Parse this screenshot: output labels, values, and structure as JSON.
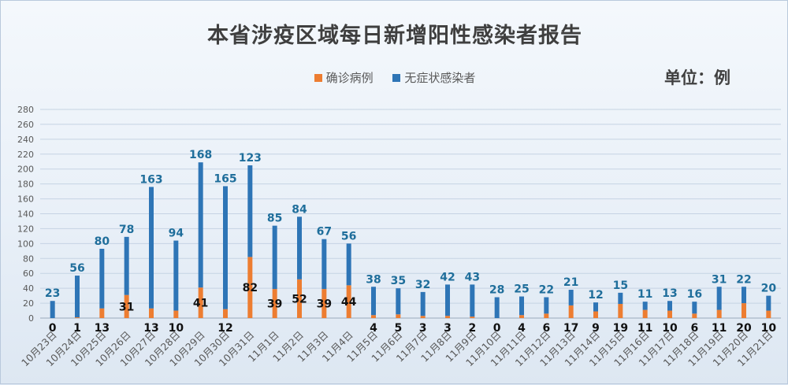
{
  "title": "本省涉疫区域每日新增阳性感染者报告",
  "unit": "单位：例",
  "colors": {
    "confirmed": "#ed7d31",
    "asymptomatic": "#2e75b6",
    "confirmed_label": "#111111",
    "asymptomatic_label": "#1f6e9b",
    "grid": "#c5d3e3",
    "axis_text": "#595959"
  },
  "chart_data": {
    "type": "bar",
    "stacked": true,
    "title": "本省涉疫区域每日新增阳性感染者报告",
    "ylim": [
      0,
      280
    ],
    "yticks": [
      0,
      20,
      40,
      60,
      80,
      100,
      120,
      140,
      160,
      180,
      200,
      220,
      240,
      260,
      280
    ],
    "grid": true,
    "legend_position": "top-center",
    "categories": [
      "10月23日",
      "10月24日",
      "10月25日",
      "10月26日",
      "10月27日",
      "10月28日",
      "10月29日",
      "10月30日",
      "10月31日",
      "11月1日",
      "11月2日",
      "11月3日",
      "11月4日",
      "11月5日",
      "11月6日",
      "11月7日",
      "11月8日",
      "11月9日",
      "11月10日",
      "11月11日",
      "11月12日",
      "11月13日",
      "11月14日",
      "11月15日",
      "11月16日",
      "11月17日",
      "11月18日",
      "11月19日",
      "11月20日",
      "11月21日"
    ],
    "series": [
      {
        "name": "确诊病例",
        "color": "#ed7d31",
        "values": [
          0,
          1,
          13,
          31,
          13,
          10,
          41,
          12,
          82,
          39,
          52,
          39,
          44,
          4,
          5,
          3,
          3,
          2,
          0,
          4,
          6,
          17,
          9,
          19,
          11,
          10,
          6,
          11,
          20,
          10
        ]
      },
      {
        "name": "无症状感染者",
        "color": "#2e75b6",
        "values": [
          23,
          56,
          80,
          78,
          163,
          94,
          168,
          165,
          123,
          85,
          84,
          67,
          56,
          38,
          35,
          32,
          42,
          43,
          28,
          25,
          22,
          21,
          12,
          15,
          11,
          13,
          16,
          31,
          22,
          20
        ]
      }
    ]
  }
}
